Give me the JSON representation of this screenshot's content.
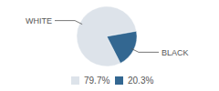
{
  "chart_data": {
    "type": "pie",
    "categories": [
      "WHITE",
      "BLACK"
    ],
    "values": [
      79.7,
      20.3
    ],
    "value_labels": [
      "79.7%",
      "20.3%"
    ],
    "colors": [
      "#dde3ea",
      "#336791"
    ],
    "legend": "bottom"
  }
}
